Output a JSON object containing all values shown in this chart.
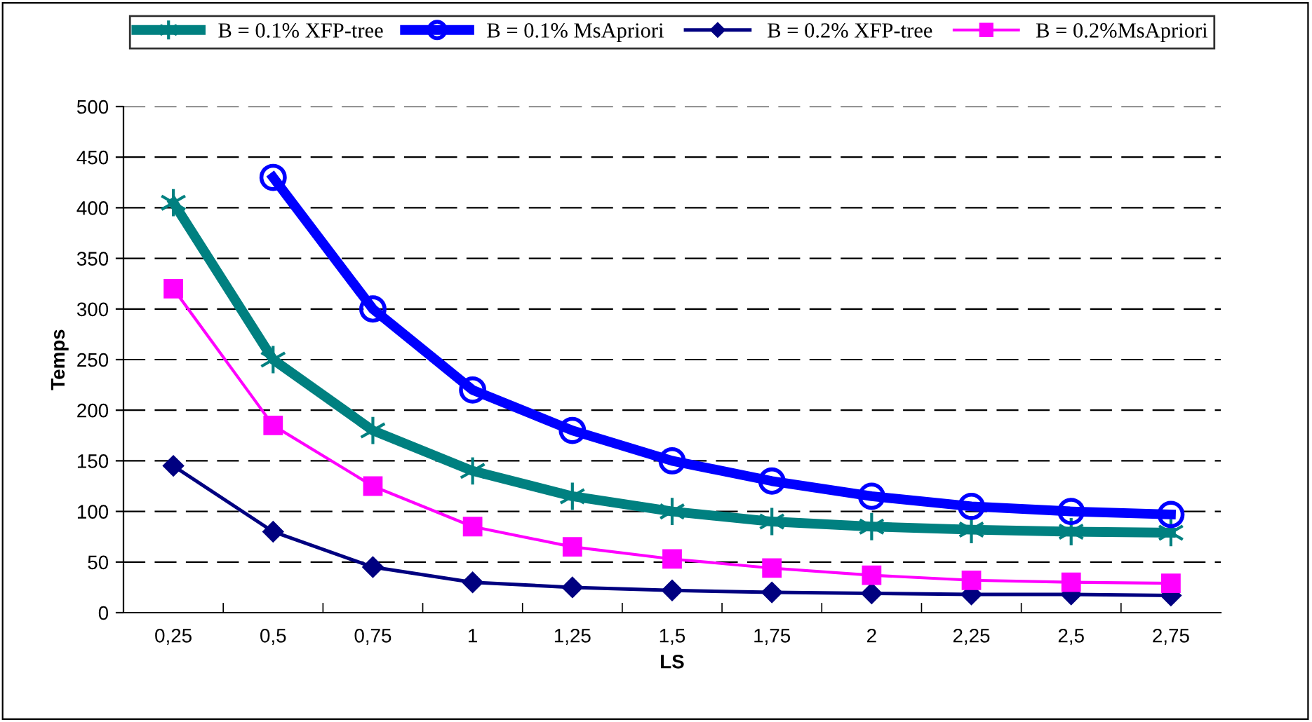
{
  "chart_data": {
    "type": "line",
    "xlabel": "LS",
    "ylabel": "Temps",
    "categories": [
      "0,25",
      "0,5",
      "0,75",
      "1",
      "1,25",
      "1,5",
      "1,75",
      "2",
      "2,25",
      "2,5",
      "2,75"
    ],
    "series": [
      {
        "name": "B = 0.1% XFP-tree",
        "color": "#008080",
        "marker": "cross",
        "values": [
          405,
          250,
          180,
          140,
          115,
          100,
          90,
          85,
          82,
          80,
          79
        ]
      },
      {
        "name": "B = 0.1% MsApriori",
        "color": "#0000ff",
        "marker": "circle",
        "values": [
          null,
          430,
          300,
          220,
          180,
          150,
          130,
          115,
          105,
          100,
          97
        ]
      },
      {
        "name": "B = 0.2% XFP-tree",
        "color": "#000080",
        "marker": "diamond",
        "values": [
          145,
          80,
          45,
          30,
          25,
          22,
          20,
          19,
          18,
          18,
          17
        ]
      },
      {
        "name": "B = 0.2%MsApriori",
        "color": "#ff00ff",
        "marker": "square",
        "values": [
          320,
          185,
          125,
          85,
          65,
          53,
          44,
          37,
          32,
          30,
          29
        ]
      }
    ],
    "ylim": [
      0,
      500
    ],
    "yticks": [
      0,
      50,
      100,
      150,
      200,
      250,
      300,
      350,
      400,
      450,
      500
    ],
    "grid": "y",
    "legend": "top",
    "line_style": "solid"
  }
}
